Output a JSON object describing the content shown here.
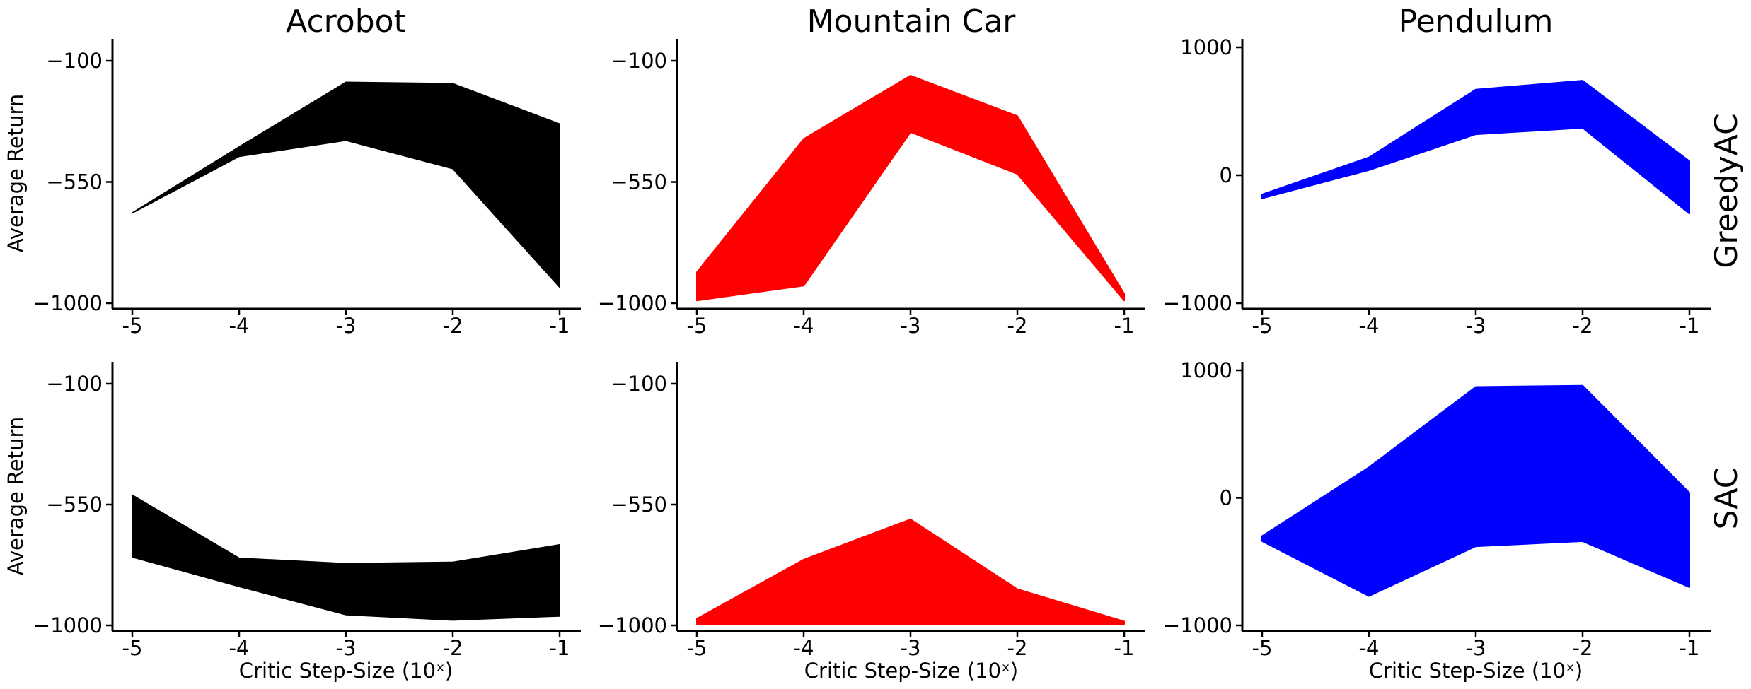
{
  "columns": [
    "Acrobot",
    "Mountain Car",
    "Pendulum"
  ],
  "rows": [
    "GreedyAC",
    "SAC"
  ],
  "xlabel": "Critic Step-Size (10ˣ)",
  "ylabel": "Average Return",
  "colors": {
    "Acrobot": "#000000",
    "Mountain Car": "#ff0000",
    "Pendulum": "#0000ff"
  },
  "chart_data": [
    {
      "type": "area",
      "row": "GreedyAC",
      "column": "Acrobot",
      "color": "#000000",
      "x": [
        -5,
        -4,
        -3,
        -2,
        -1
      ],
      "xtick_labels": [
        "-5",
        "-4",
        "-3",
        "-2",
        "-1"
      ],
      "yticks": [
        -100,
        -550,
        -1000
      ],
      "ytick_labels": [
        "−100",
        "−550",
        "−1000"
      ],
      "ylim": [
        -1000,
        -50
      ],
      "upper": [
        -665,
        -420,
        -180,
        -185,
        -335
      ],
      "lower": [
        -665,
        -455,
        -395,
        -500,
        -940
      ]
    },
    {
      "type": "area",
      "row": "GreedyAC",
      "column": "Mountain Car",
      "color": "#ff0000",
      "x": [
        -5,
        -4,
        -3,
        -2,
        -1
      ],
      "xtick_labels": [
        "-5",
        "-4",
        "-3",
        "-2",
        "-1"
      ],
      "yticks": [
        -100,
        -550,
        -1000
      ],
      "ytick_labels": [
        "−100",
        "−550",
        "−1000"
      ],
      "ylim": [
        -1000,
        -50
      ],
      "upper": [
        -885,
        -390,
        -155,
        -305,
        -965
      ],
      "lower": [
        -990,
        -935,
        -365,
        -520,
        -990
      ]
    },
    {
      "type": "area",
      "row": "GreedyAC",
      "column": "Pendulum",
      "color": "#0000ff",
      "x": [
        -5,
        -4,
        -3,
        -2,
        -1
      ],
      "xtick_labels": [
        "-5",
        "-4",
        "-3",
        "-2",
        "-1"
      ],
      "yticks": [
        1000,
        0,
        -1000
      ],
      "ytick_labels": [
        "1000",
        "0",
        "−1000"
      ],
      "ylim": [
        -1000,
        1000
      ],
      "upper": [
        -150,
        140,
        670,
        740,
        110
      ],
      "lower": [
        -180,
        40,
        320,
        370,
        -300
      ]
    },
    {
      "type": "area",
      "row": "SAC",
      "column": "Acrobot",
      "color": "#000000",
      "x": [
        -5,
        -4,
        -3,
        -2,
        -1
      ],
      "xtick_labels": [
        "-5",
        "-4",
        "-3",
        "-2",
        "-1"
      ],
      "yticks": [
        -100,
        -550,
        -1000
      ],
      "ytick_labels": [
        "−100",
        "−550",
        "−1000"
      ],
      "ylim": [
        -1000,
        -50
      ],
      "upper": [
        -515,
        -750,
        -770,
        -765,
        -700
      ],
      "lower": [
        -745,
        -855,
        -960,
        -980,
        -965
      ]
    },
    {
      "type": "area",
      "row": "SAC",
      "column": "Mountain Car",
      "color": "#ff0000",
      "x": [
        -5,
        -4,
        -3,
        -2,
        -1
      ],
      "xtick_labels": [
        "-5",
        "-4",
        "-3",
        "-2",
        "-1"
      ],
      "yticks": [
        -100,
        -550,
        -1000
      ],
      "ytick_labels": [
        "−100",
        "−550",
        "−1000"
      ],
      "ylim": [
        -1000,
        -50
      ],
      "upper": [
        -975,
        -755,
        -605,
        -865,
        -985
      ],
      "lower": [
        -995,
        -995,
        -995,
        -995,
        -995
      ]
    },
    {
      "type": "area",
      "row": "SAC",
      "column": "Pendulum",
      "color": "#0000ff",
      "x": [
        -5,
        -4,
        -3,
        -2,
        -1
      ],
      "xtick_labels": [
        "-5",
        "-4",
        "-3",
        "-2",
        "-1"
      ],
      "yticks": [
        1000,
        0,
        -1000
      ],
      "ytick_labels": [
        "1000",
        "0",
        "−1000"
      ],
      "ylim": [
        -1000,
        1000
      ],
      "upper": [
        -300,
        240,
        870,
        880,
        40
      ],
      "lower": [
        -340,
        -770,
        -380,
        -340,
        -700
      ]
    }
  ]
}
